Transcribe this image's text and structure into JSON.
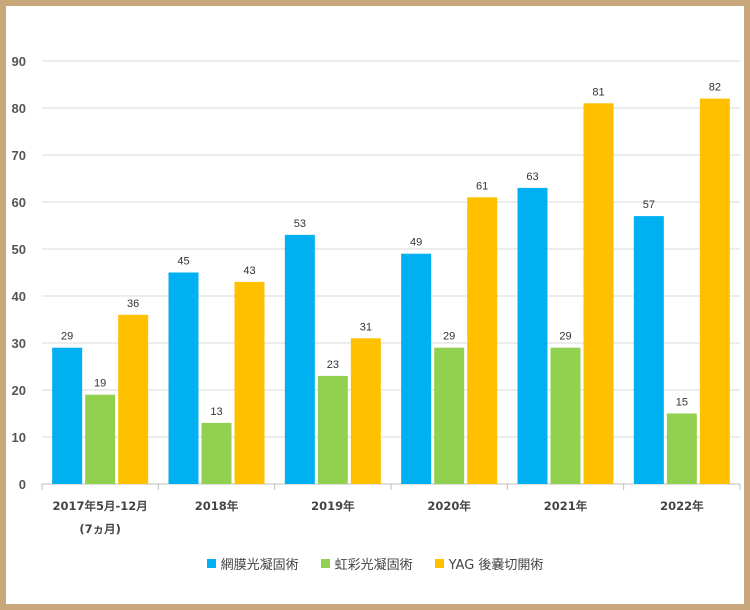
{
  "chart_data": {
    "type": "bar",
    "categories": [
      "2017年5月-12月\n(7ヵ月)",
      "2018年",
      "2019年",
      "2020年",
      "2021年",
      "2022年"
    ],
    "series": [
      {
        "name": "網膜光凝固術",
        "color": "#00b0f0",
        "values": [
          29,
          45,
          53,
          49,
          63,
          57
        ]
      },
      {
        "name": "虹彩光凝固術",
        "color": "#92d050",
        "values": [
          19,
          13,
          23,
          29,
          29,
          15
        ]
      },
      {
        "name": "YAG 後嚢切開術",
        "color": "#ffc000",
        "values": [
          36,
          43,
          31,
          61,
          81,
          82
        ]
      }
    ],
    "ylim": [
      0,
      90
    ],
    "yticks": [
      0,
      10,
      20,
      30,
      40,
      50,
      60,
      70,
      80,
      90
    ],
    "grid": true,
    "legend_position": "bottom"
  }
}
